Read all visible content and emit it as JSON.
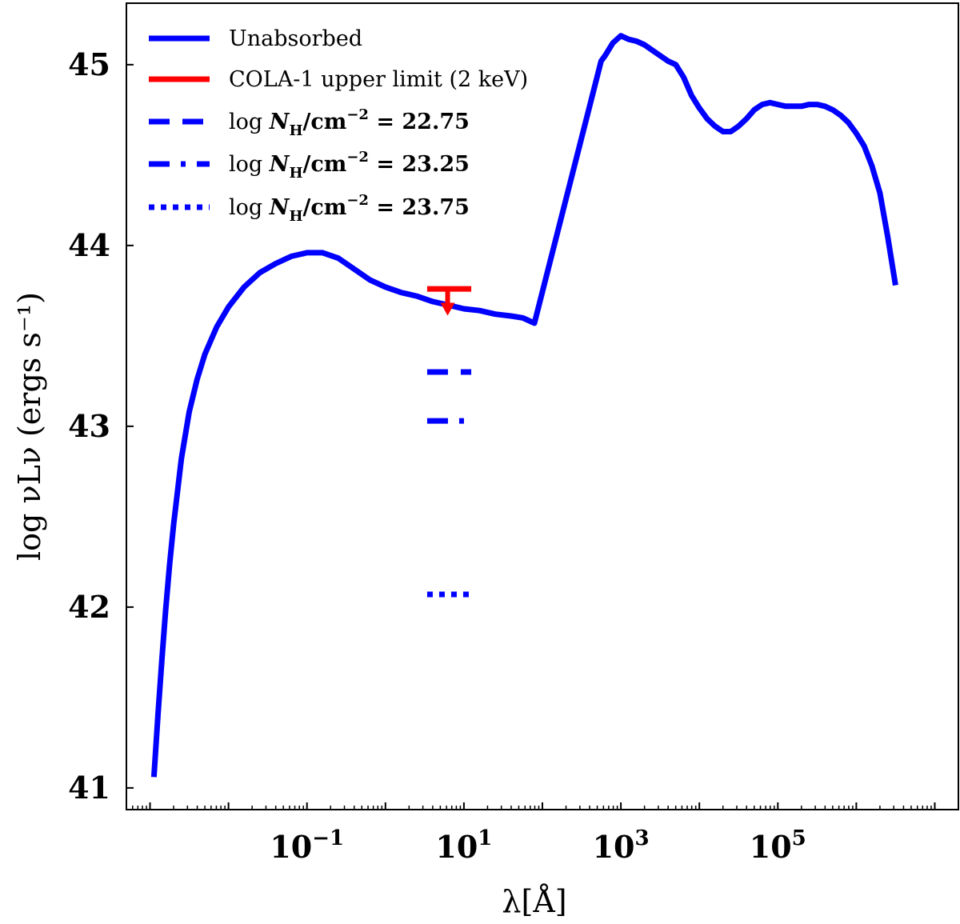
{
  "chart_data": {
    "type": "line",
    "title": "",
    "xlabel": "λ[Å]",
    "ylabel": "log νLν (ergs s⁻¹)",
    "xscale": "log",
    "xlim": [
      0.0005,
      20000000
    ],
    "ylim": [
      40.88,
      45.34
    ],
    "xticks": [
      {
        "value": 0.1,
        "label": "10",
        "exp": "−1"
      },
      {
        "value": 10,
        "label": "10",
        "exp": "1"
      },
      {
        "value": 1000,
        "label": "10",
        "exp": "3"
      },
      {
        "value": 100000,
        "label": "10",
        "exp": "5"
      }
    ],
    "yticks": [
      {
        "value": 41,
        "label": "41"
      },
      {
        "value": 42,
        "label": "42"
      },
      {
        "value": 43,
        "label": "43"
      },
      {
        "value": 44,
        "label": "44"
      },
      {
        "value": 45,
        "label": "45"
      }
    ],
    "grid": false,
    "legend_position": "top-left",
    "colors": {
      "blue": "#0000ff",
      "red": "#ff0000"
    },
    "series": [
      {
        "name": "Unabsorbed",
        "style": "solid",
        "color": "#0000ff",
        "points": [
          [
            0.00112,
            41.06
          ],
          [
            0.00126,
            41.4
          ],
          [
            0.00141,
            41.7
          ],
          [
            0.00158,
            41.98
          ],
          [
            0.00178,
            42.24
          ],
          [
            0.002,
            42.46
          ],
          [
            0.00251,
            42.82
          ],
          [
            0.00316,
            43.08
          ],
          [
            0.00398,
            43.26
          ],
          [
            0.00501,
            43.4
          ],
          [
            0.00708,
            43.55
          ],
          [
            0.01,
            43.66
          ],
          [
            0.0158,
            43.77
          ],
          [
            0.0251,
            43.85
          ],
          [
            0.0398,
            43.9
          ],
          [
            0.0631,
            43.94
          ],
          [
            0.1,
            43.96
          ],
          [
            0.158,
            43.96
          ],
          [
            0.251,
            43.93
          ],
          [
            0.398,
            43.87
          ],
          [
            0.631,
            43.81
          ],
          [
            1.0,
            43.77
          ],
          [
            1.58,
            43.74
          ],
          [
            2.5,
            43.72
          ],
          [
            3.98,
            43.69
          ],
          [
            6.31,
            43.67
          ],
          [
            10,
            43.65
          ],
          [
            15.8,
            43.64
          ],
          [
            25.1,
            43.62
          ],
          [
            39.8,
            43.61
          ],
          [
            56,
            43.6
          ],
          [
            63,
            43.59
          ],
          [
            79,
            43.57
          ],
          [
            560,
            45.02
          ],
          [
            630,
            45.05
          ],
          [
            790,
            45.12
          ],
          [
            1000,
            45.16
          ],
          [
            1260,
            45.14
          ],
          [
            1580,
            45.13
          ],
          [
            2000,
            45.11
          ],
          [
            2510,
            45.08
          ],
          [
            3160,
            45.05
          ],
          [
            3980,
            45.02
          ],
          [
            5010,
            45.0
          ],
          [
            6310,
            44.93
          ],
          [
            7940,
            44.83
          ],
          [
            10000,
            44.76
          ],
          [
            12600,
            44.7
          ],
          [
            15800,
            44.66
          ],
          [
            20000,
            44.63
          ],
          [
            25100,
            44.63
          ],
          [
            31600,
            44.66
          ],
          [
            39800,
            44.7
          ],
          [
            50100,
            44.75
          ],
          [
            63100,
            44.78
          ],
          [
            79400,
            44.79
          ],
          [
            100000,
            44.78
          ],
          [
            126000,
            44.77
          ],
          [
            158000,
            44.77
          ],
          [
            200000,
            44.77
          ],
          [
            251000,
            44.78
          ],
          [
            316000,
            44.78
          ],
          [
            398000,
            44.77
          ],
          [
            501000,
            44.75
          ],
          [
            631000,
            44.72
          ],
          [
            794000,
            44.68
          ],
          [
            1000000,
            44.62
          ],
          [
            1260000,
            44.55
          ],
          [
            1580000,
            44.44
          ],
          [
            2000000,
            44.29
          ],
          [
            2510000,
            44.05
          ],
          [
            3160000,
            43.78
          ]
        ]
      }
    ],
    "upper_limit": {
      "name": "COLA-1 upper limit (2 keV)",
      "color": "#ff0000",
      "x_range": [
        3.4,
        12.4
      ],
      "x_center": 6.2,
      "y": 43.76,
      "y_arrow": 43.63
    },
    "absorbed_levels": [
      {
        "name": "log NH/cm⁻² = 22.75",
        "style": "dashed",
        "color": "#0000ff",
        "x_range": [
          3.4,
          12.4
        ],
        "y": 43.3
      },
      {
        "name": "log NH/cm⁻² = 23.25",
        "style": "dashdot",
        "color": "#0000ff",
        "x_range": [
          3.4,
          12.4
        ],
        "y": 43.03
      },
      {
        "name": "log NH/cm⁻² = 23.75",
        "style": "dotted",
        "color": "#0000ff",
        "x_range": [
          3.4,
          12.4
        ],
        "y": 42.07
      }
    ],
    "legend": [
      {
        "label": "Unabsorbed",
        "style": "solid",
        "color": "#0000ff"
      },
      {
        "label": "COLA-1 upper limit (2 keV)",
        "style": "solid",
        "color": "#ff0000"
      },
      {
        "label_prefix": "log ",
        "label_math": "N",
        "label_sub": "H",
        "label_unit": "/cm",
        "label_sup": "−2",
        "label_value": " = 22.75",
        "style": "dashed",
        "color": "#0000ff"
      },
      {
        "label_prefix": "log ",
        "label_math": "N",
        "label_sub": "H",
        "label_unit": "/cm",
        "label_sup": "−2",
        "label_value": " = 23.25",
        "style": "dashdot",
        "color": "#0000ff"
      },
      {
        "label_prefix": "log ",
        "label_math": "N",
        "label_sub": "H",
        "label_unit": "/cm",
        "label_sup": "−2",
        "label_value": " = 23.75",
        "style": "dotted",
        "color": "#0000ff"
      }
    ]
  }
}
